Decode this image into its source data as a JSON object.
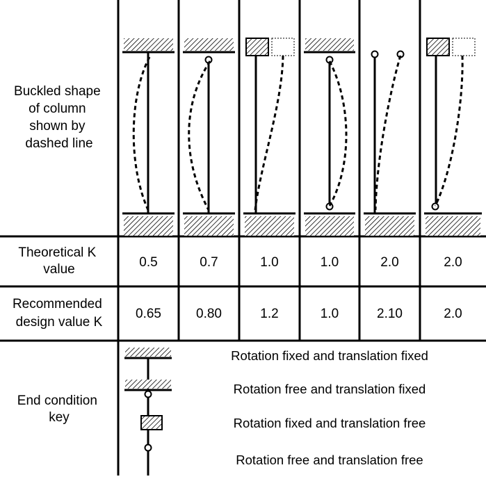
{
  "row_labels": {
    "buckled": [
      "Buckled shape",
      "of column",
      "shown by",
      "dashed line"
    ],
    "theoretical": [
      "Theoretical K",
      "value"
    ],
    "recommended": [
      "Recommended",
      "design value K"
    ],
    "end_condition": [
      "End condition",
      "key"
    ]
  },
  "cases": [
    {
      "theoretical_k": "0.5",
      "recommended_k": "0.65",
      "top": "rotation-fixed-translation-fixed",
      "bottom": "rotation-fixed-translation-fixed"
    },
    {
      "theoretical_k": "0.7",
      "recommended_k": "0.80",
      "top": "rotation-free-translation-fixed",
      "bottom": "rotation-fixed-translation-fixed"
    },
    {
      "theoretical_k": "1.0",
      "recommended_k": "1.2",
      "top": "rotation-fixed-translation-free",
      "bottom": "rotation-fixed-translation-fixed"
    },
    {
      "theoretical_k": "1.0",
      "recommended_k": "1.0",
      "top": "rotation-free-translation-fixed",
      "bottom": "rotation-free-translation-fixed"
    },
    {
      "theoretical_k": "2.0",
      "recommended_k": "2.10",
      "top": "rotation-free-translation-free",
      "bottom": "rotation-fixed-translation-fixed"
    },
    {
      "theoretical_k": "2.0",
      "recommended_k": "2.0",
      "top": "rotation-fixed-translation-free",
      "bottom": "rotation-free-translation-fixed"
    }
  ],
  "key": [
    {
      "symbol": "rotation-fixed-translation-fixed",
      "text": "Rotation fixed and translation fixed"
    },
    {
      "symbol": "rotation-free-translation-fixed",
      "text": "Rotation free and translation fixed"
    },
    {
      "symbol": "rotation-fixed-translation-free",
      "text": "Rotation fixed and translation free"
    },
    {
      "symbol": "rotation-free-translation-free",
      "text": "Rotation free and translation free"
    }
  ]
}
